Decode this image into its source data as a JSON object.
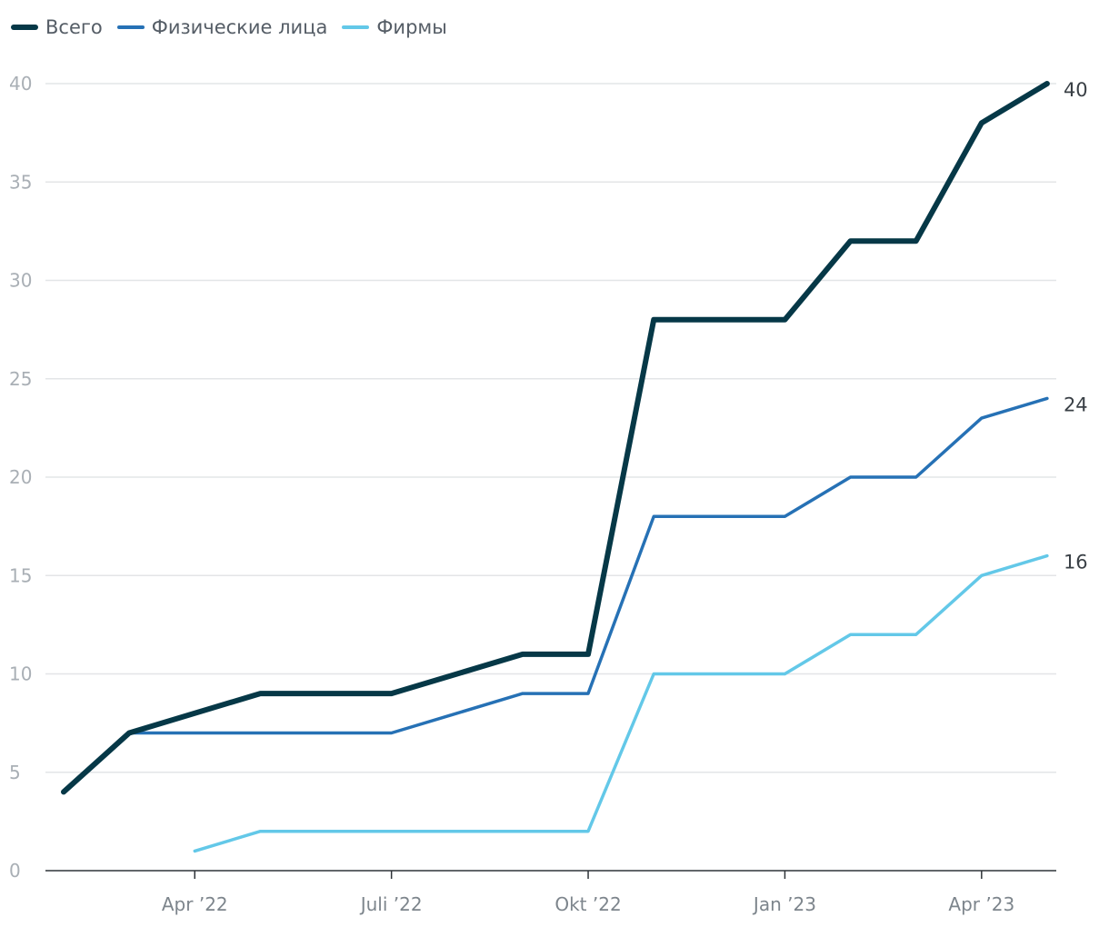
{
  "chart_data": {
    "type": "line",
    "x": [
      "2022-02-01",
      "2022-03-01",
      "2022-04-01",
      "2022-05-01",
      "2022-06-01",
      "2022-07-01",
      "2022-08-01",
      "2022-09-01",
      "2022-10-01",
      "2022-11-01",
      "2022-12-01",
      "2023-01-01",
      "2023-02-01",
      "2023-03-01",
      "2023-04-01",
      "2023-05-01"
    ],
    "series": [
      {
        "name": "Всего",
        "color": "#063847",
        "values": [
          4,
          7,
          8,
          9,
          9,
          9,
          10,
          11,
          11,
          28,
          28,
          28,
          32,
          32,
          38,
          40
        ]
      },
      {
        "name": "Физические лица",
        "color": "#2671b5",
        "values": [
          null,
          7,
          7,
          7,
          7,
          7,
          8,
          9,
          9,
          18,
          18,
          18,
          20,
          20,
          23,
          24
        ]
      },
      {
        "name": "Фирмы",
        "color": "#63c8e8",
        "values": [
          null,
          null,
          1,
          2,
          2,
          2,
          2,
          2,
          2,
          10,
          10,
          10,
          12,
          12,
          15,
          16
        ]
      }
    ],
    "end_labels": [
      "40",
      "24",
      "16"
    ],
    "y_ticks": [
      "0",
      "5",
      "10",
      "15",
      "20",
      "25",
      "30",
      "35",
      "40"
    ],
    "x_ticks": [
      {
        "date": "2022-04-01",
        "label": "Apr ’22"
      },
      {
        "date": "2022-07-01",
        "label": "Juli ’22"
      },
      {
        "date": "2022-10-01",
        "label": "Okt ’22"
      },
      {
        "date": "2023-01-01",
        "label": "Jan ’23"
      },
      {
        "date": "2023-04-01",
        "label": "Apr ’23"
      }
    ],
    "ylim": [
      0,
      40
    ],
    "grid": true,
    "legend_position": "top-left",
    "title": "",
    "xlabel": "",
    "ylabel": ""
  }
}
